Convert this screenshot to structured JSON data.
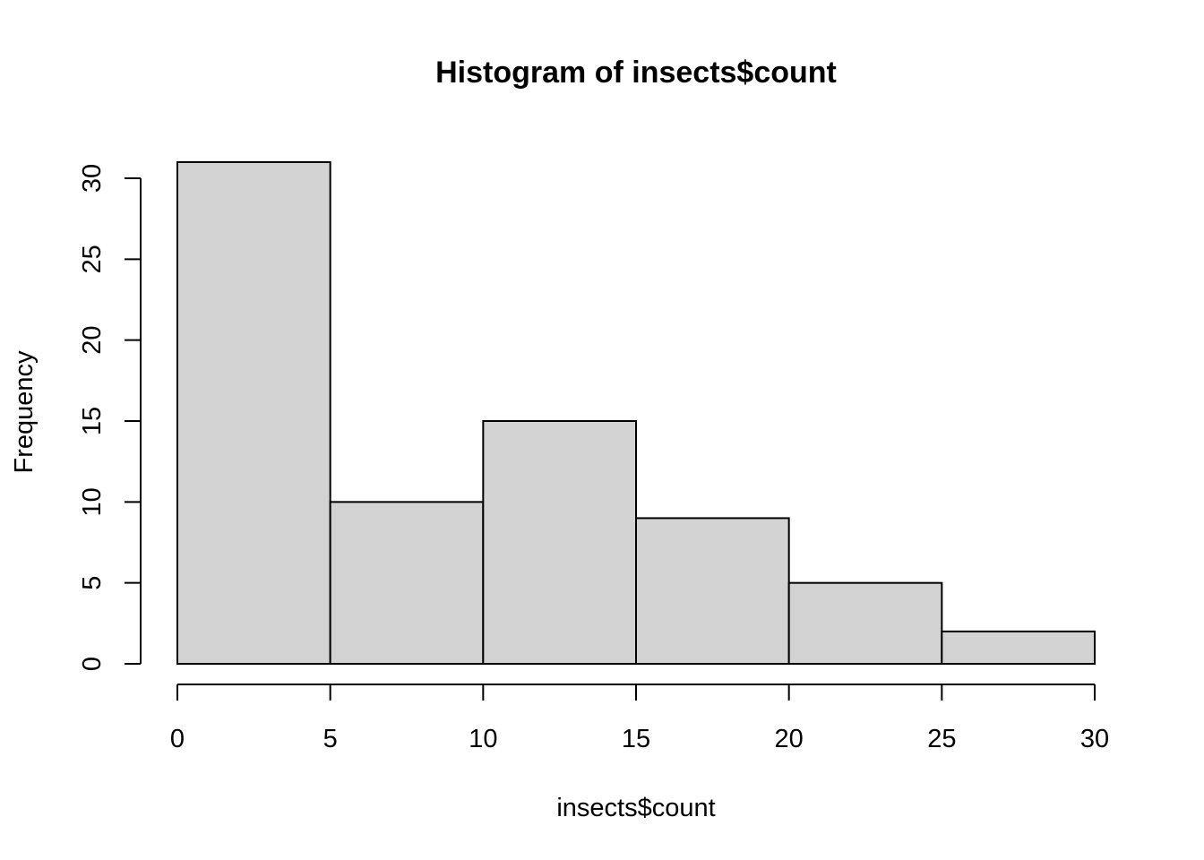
{
  "chart_data": {
    "type": "bar",
    "title": "Histogram of insects$count",
    "xlabel": "insects$count",
    "ylabel": "Frequency",
    "bins": [
      {
        "from": 0,
        "to": 5,
        "count": 31
      },
      {
        "from": 5,
        "to": 10,
        "count": 10
      },
      {
        "from": 10,
        "to": 15,
        "count": 15
      },
      {
        "from": 15,
        "to": 20,
        "count": 9
      },
      {
        "from": 20,
        "to": 25,
        "count": 5
      },
      {
        "from": 25,
        "to": 30,
        "count": 2
      }
    ],
    "xlim": [
      0,
      30
    ],
    "ylim": [
      0,
      31
    ],
    "x_ticks": [
      0,
      5,
      10,
      15,
      20,
      25,
      30
    ],
    "y_ticks": [
      0,
      5,
      10,
      15,
      20,
      25,
      30
    ],
    "bar_fill": "#d3d3d3",
    "bar_stroke": "#000000",
    "grid": false,
    "legend": "none"
  }
}
